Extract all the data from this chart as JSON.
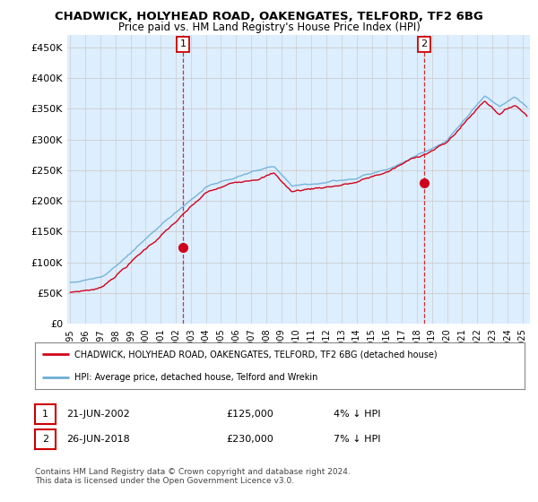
{
  "title": "CHADWICK, HOLYHEAD ROAD, OAKENGATES, TELFORD, TF2 6BG",
  "subtitle": "Price paid vs. HM Land Registry's House Price Index (HPI)",
  "ylabel_ticks": [
    "£0",
    "£50K",
    "£100K",
    "£150K",
    "£200K",
    "£250K",
    "£300K",
    "£350K",
    "£400K",
    "£450K"
  ],
  "ytick_values": [
    0,
    50000,
    100000,
    150000,
    200000,
    250000,
    300000,
    350000,
    400000,
    450000
  ],
  "ylim": [
    0,
    470000
  ],
  "xlim_start": 1994.8,
  "xlim_end": 2025.5,
  "x_tick_labels": [
    "1995",
    "1996",
    "1997",
    "1998",
    "1999",
    "2000",
    "2001",
    "2002",
    "2003",
    "2004",
    "2005",
    "2006",
    "2007",
    "2008",
    "2009",
    "2010",
    "2011",
    "2012",
    "2013",
    "2014",
    "2015",
    "2016",
    "2017",
    "2018",
    "2019",
    "2020",
    "2021",
    "2022",
    "2023",
    "2024",
    "2025"
  ],
  "hpi_color": "#6baed6",
  "price_color": "#d0021b",
  "plot_bg_color": "#ddeeff",
  "sale1_date": 2002.47,
  "sale1_price": 125000,
  "sale1_label": "1",
  "sale2_date": 2018.48,
  "sale2_price": 230000,
  "sale2_label": "2",
  "legend_line1": "CHADWICK, HOLYHEAD ROAD, OAKENGATES, TELFORD, TF2 6BG (detached house)",
  "legend_line2": "HPI: Average price, detached house, Telford and Wrekin",
  "table_row1_num": "1",
  "table_row1_date": "21-JUN-2002",
  "table_row1_price": "£125,000",
  "table_row1_hpi": "4% ↓ HPI",
  "table_row2_num": "2",
  "table_row2_date": "26-JUN-2018",
  "table_row2_price": "£230,000",
  "table_row2_hpi": "7% ↓ HPI",
  "footer": "Contains HM Land Registry data © Crown copyright and database right 2024.\nThis data is licensed under the Open Government Licence v3.0.",
  "background_color": "#ffffff",
  "grid_color": "#cccccc",
  "vline_color": "#cc0000"
}
